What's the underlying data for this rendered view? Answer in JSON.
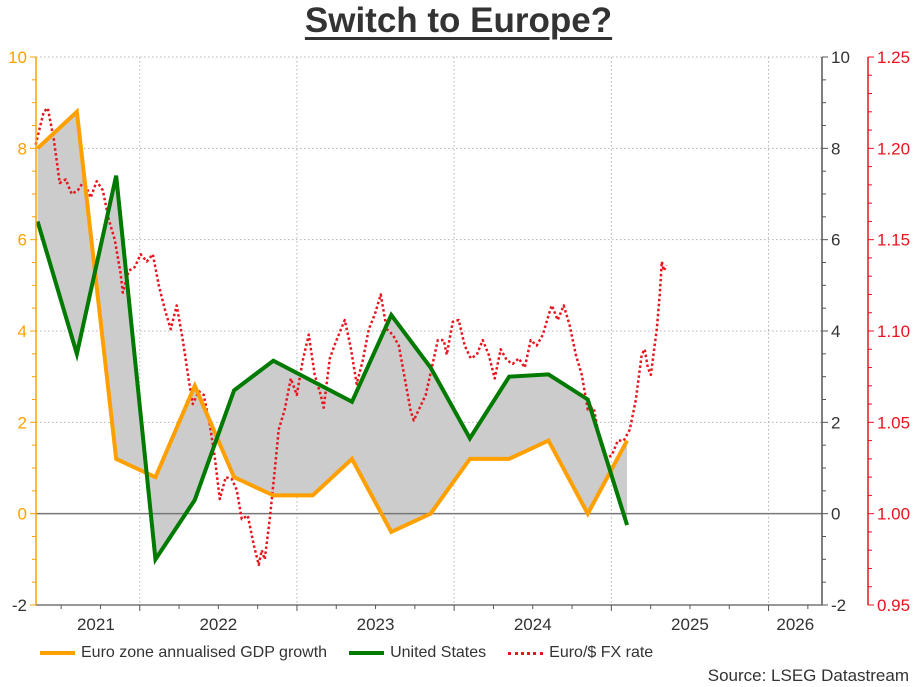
{
  "chart_data": {
    "type": "line",
    "title": "Switch to Europe?",
    "source": "Source: LSEG Datastream",
    "xlim": [
      2021.34,
      2026.34
    ],
    "x_ticks": [
      2021,
      2022,
      2023,
      2024,
      2025,
      2026
    ],
    "x_tick_labels": [
      "2021",
      "2022",
      "2023",
      "2024",
      "2025",
      "2026"
    ],
    "y_left": {
      "range": [
        -2,
        10
      ],
      "ticks": [
        -2,
        0,
        2,
        4,
        6,
        8,
        10
      ],
      "tick_labels": [
        "-2",
        "0",
        "2",
        "4",
        "6",
        "8",
        "10"
      ]
    },
    "y_mid": {
      "range": [
        -2,
        10
      ],
      "ticks": [
        -2,
        0,
        2,
        4,
        6,
        8,
        10
      ],
      "tick_labels": [
        "-2",
        "0",
        "2",
        "4",
        "6",
        "8",
        "10"
      ]
    },
    "y_right": {
      "range": [
        0.95,
        1.25
      ],
      "ticks": [
        0.95,
        1.0,
        1.05,
        1.1,
        1.15,
        1.2,
        1.25
      ],
      "tick_labels": [
        "0.95",
        "1.00",
        "1.05",
        "1.10",
        "1.15",
        "1.20",
        "1.25"
      ]
    },
    "grid": true,
    "legend_position": "bottom-left",
    "colors": {
      "euro": "#FFA000",
      "us": "#007A00",
      "fx": "#E8141E",
      "fill": "#CCCCCC",
      "left_axis": "#FFA000",
      "right_axis": "#E8141E",
      "mid_axis": "#333333"
    },
    "quarter_x": [
      2021.35,
      2021.6,
      2021.85,
      2022.1,
      2022.35,
      2022.6,
      2022.85,
      2023.1,
      2023.35,
      2023.6,
      2023.85,
      2024.1,
      2024.35,
      2024.6,
      2024.85,
      2025.1
    ],
    "series": [
      {
        "name": "Euro zone annualised GDP growth",
        "axis": "left",
        "values": [
          8.0,
          8.8,
          1.2,
          0.8,
          2.8,
          0.8,
          0.4,
          0.4,
          1.2,
          -0.4,
          0.0,
          1.2,
          1.2,
          1.6,
          0.0,
          1.6
        ]
      },
      {
        "name": "United States",
        "axis": "left",
        "values": [
          6.4,
          3.5,
          7.4,
          -1.0,
          0.3,
          2.7,
          3.35,
          2.9,
          2.45,
          4.35,
          3.2,
          1.65,
          3.0,
          3.05,
          2.5,
          -0.25
        ]
      },
      {
        "name": "Euro/$ FX rate",
        "axis": "right",
        "x": [
          2021.338,
          2021.389,
          2021.415,
          2021.453,
          2021.491,
          2021.529,
          2021.567,
          2021.606,
          2021.644,
          2021.688,
          2021.726,
          2021.765,
          2021.803,
          2021.841,
          2021.879,
          2021.892,
          2021.93,
          2021.968,
          2022.006,
          2022.045,
          2022.083,
          2022.121,
          2022.159,
          2022.197,
          2022.235,
          2022.274,
          2022.312,
          2022.337,
          2022.375,
          2022.407,
          2022.445,
          2022.477,
          2022.509,
          2022.547,
          2022.585,
          2022.617,
          2022.649,
          2022.687,
          2022.725,
          2022.757,
          2022.776,
          2022.795,
          2022.827,
          2022.859,
          2022.884,
          2022.922,
          2022.961,
          2022.999,
          2023.037,
          2023.075,
          2023.113,
          2023.151,
          2023.17,
          2023.209,
          2023.247,
          2023.304,
          2023.342,
          2023.38,
          2023.419,
          2023.457,
          2023.495,
          2023.533,
          2023.571,
          2023.609,
          2023.648,
          2023.686,
          2023.724,
          2023.743,
          2023.781,
          2023.819,
          2023.858,
          2023.896,
          2023.934,
          2023.953,
          2023.991,
          2024.029,
          2024.067,
          2024.106,
          2024.144,
          2024.182,
          2024.22,
          2024.258,
          2024.296,
          2024.335,
          2024.373,
          2024.411,
          2024.449,
          2024.487,
          2024.525,
          2024.564,
          2024.602,
          2024.621,
          2024.659,
          2024.697,
          2024.735,
          2024.774,
          2024.812,
          2024.85,
          2024.888,
          2024.926,
          2024.964,
          2025.003,
          2025.041,
          2025.079,
          2025.117,
          2025.155,
          2025.193,
          2025.212,
          2025.232,
          2025.251,
          2025.289,
          2025.308,
          2025.321,
          2025.333,
          2025.352
        ],
        "values": [
          1.202,
          1.22,
          1.222,
          1.205,
          1.181,
          1.183,
          1.175,
          1.177,
          1.182,
          1.173,
          1.182,
          1.177,
          1.161,
          1.15,
          1.131,
          1.121,
          1.133,
          1.135,
          1.142,
          1.138,
          1.142,
          1.125,
          1.112,
          1.101,
          1.114,
          1.095,
          1.073,
          1.06,
          1.067,
          1.065,
          1.049,
          1.031,
          1.008,
          1.02,
          1.019,
          1.013,
          0.997,
          0.999,
          0.983,
          0.972,
          0.98,
          0.975,
          0.997,
          1.024,
          1.046,
          1.057,
          1.074,
          1.065,
          1.084,
          1.098,
          1.076,
          1.065,
          1.058,
          1.085,
          1.094,
          1.106,
          1.091,
          1.071,
          1.084,
          1.101,
          1.109,
          1.12,
          1.101,
          1.098,
          1.092,
          1.074,
          1.056,
          1.051,
          1.058,
          1.065,
          1.08,
          1.095,
          1.095,
          1.087,
          1.105,
          1.106,
          1.092,
          1.085,
          1.087,
          1.095,
          1.087,
          1.074,
          1.09,
          1.084,
          1.082,
          1.085,
          1.08,
          1.095,
          1.092,
          1.098,
          1.109,
          1.114,
          1.106,
          1.114,
          1.103,
          1.087,
          1.076,
          1.057,
          1.058,
          1.04,
          1.03,
          1.032,
          1.04,
          1.04,
          1.046,
          1.062,
          1.087,
          1.09,
          1.08,
          1.076,
          1.101,
          1.12,
          1.138,
          1.133,
          1.136
        ]
      }
    ]
  }
}
